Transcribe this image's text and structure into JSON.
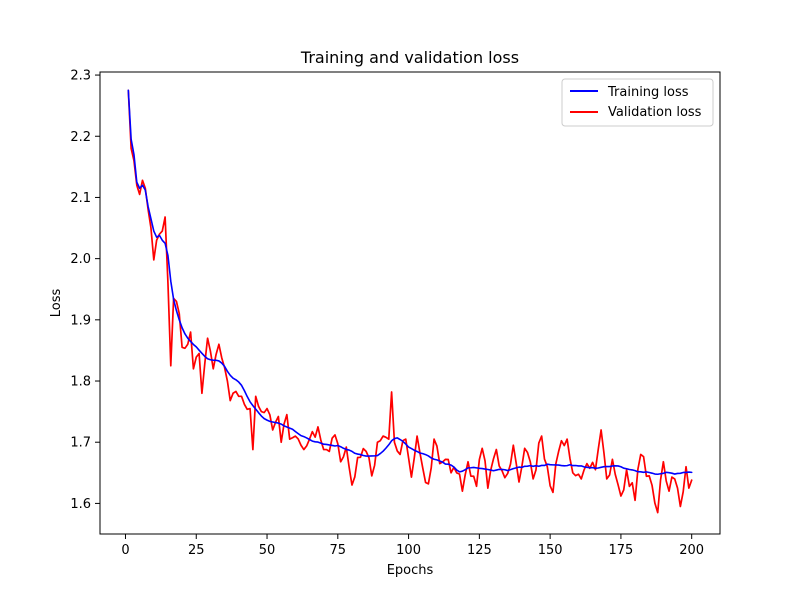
{
  "chart_data": {
    "type": "line",
    "title": "Training and validation loss",
    "xlabel": "Epochs",
    "ylabel": "Loss",
    "xlim": [
      -9,
      210
    ],
    "ylim": [
      1.55,
      2.305
    ],
    "xticks": [
      0,
      25,
      50,
      75,
      100,
      125,
      150,
      175,
      200
    ],
    "xtick_labels": [
      "0",
      "25",
      "50",
      "75",
      "100",
      "125",
      "150",
      "175",
      "200"
    ],
    "yticks": [
      1.6,
      1.7,
      1.8,
      1.9,
      2.0,
      2.1,
      2.2,
      2.3
    ],
    "ytick_labels": [
      "1.6",
      "1.7",
      "1.8",
      "1.9",
      "2.0",
      "2.1",
      "2.2",
      "2.3"
    ],
    "grid": false,
    "legend_position": "top-right",
    "series": [
      {
        "name": "Training loss",
        "color": "#0000ff",
        "anchors": [
          [
            1,
            2.275
          ],
          [
            2,
            2.195
          ],
          [
            3,
            2.17
          ],
          [
            4,
            2.125
          ],
          [
            5,
            2.115
          ],
          [
            6,
            2.12
          ],
          [
            7,
            2.112
          ],
          [
            8,
            2.085
          ],
          [
            9,
            2.065
          ],
          [
            10,
            2.045
          ],
          [
            11,
            2.035
          ],
          [
            12,
            2.038
          ],
          [
            13,
            2.03
          ],
          [
            14,
            2.025
          ],
          [
            15,
            2.005
          ],
          [
            16,
            1.955
          ],
          [
            17,
            1.93
          ],
          [
            18,
            1.915
          ],
          [
            19,
            1.9
          ],
          [
            20,
            1.885
          ],
          [
            22,
            1.87
          ],
          [
            24,
            1.86
          ],
          [
            26,
            1.852
          ],
          [
            28,
            1.84
          ],
          [
            30,
            1.832
          ],
          [
            32,
            1.835
          ],
          [
            34,
            1.832
          ],
          [
            36,
            1.815
          ],
          [
            38,
            1.805
          ],
          [
            40,
            1.8
          ],
          [
            42,
            1.785
          ],
          [
            44,
            1.765
          ],
          [
            46,
            1.755
          ],
          [
            48,
            1.742
          ],
          [
            50,
            1.735
          ],
          [
            55,
            1.73
          ],
          [
            60,
            1.718
          ],
          [
            65,
            1.705
          ],
          [
            70,
            1.695
          ],
          [
            75,
            1.695
          ],
          [
            80,
            1.685
          ],
          [
            85,
            1.675
          ],
          [
            90,
            1.68
          ],
          [
            93,
            1.695
          ],
          [
            95,
            1.71
          ],
          [
            98,
            1.702
          ],
          [
            100,
            1.692
          ],
          [
            105,
            1.682
          ],
          [
            110,
            1.67
          ],
          [
            115,
            1.665
          ],
          [
            118,
            1.65
          ],
          [
            122,
            1.66
          ],
          [
            125,
            1.658
          ],
          [
            130,
            1.655
          ],
          [
            135,
            1.655
          ],
          [
            140,
            1.66
          ],
          [
            145,
            1.66
          ],
          [
            150,
            1.665
          ],
          [
            155,
            1.66
          ],
          [
            160,
            1.662
          ],
          [
            165,
            1.658
          ],
          [
            170,
            1.66
          ],
          [
            175,
            1.66
          ],
          [
            180,
            1.652
          ],
          [
            185,
            1.652
          ],
          [
            190,
            1.65
          ],
          [
            195,
            1.648
          ],
          [
            200,
            1.65
          ]
        ],
        "noise": [
          0.0015,
          0.0025,
          0.003,
          0.0035
        ],
        "seed": 11,
        "smooth": true
      },
      {
        "name": "Validation loss",
        "color": "#ff0000",
        "anchors": [
          [
            1,
            2.275
          ],
          [
            2,
            2.18
          ],
          [
            3,
            2.16
          ],
          [
            4,
            2.12
          ],
          [
            5,
            2.105
          ],
          [
            6,
            2.128
          ],
          [
            7,
            2.115
          ],
          [
            8,
            2.08
          ],
          [
            9,
            2.05
          ],
          [
            10,
            1.998
          ],
          [
            11,
            2.03
          ],
          [
            12,
            2.04
          ],
          [
            13,
            2.045
          ],
          [
            14,
            2.068
          ],
          [
            15,
            1.96
          ],
          [
            16,
            1.825
          ],
          [
            17,
            1.935
          ],
          [
            18,
            1.93
          ],
          [
            19,
            1.91
          ],
          [
            20,
            1.855
          ],
          [
            22,
            1.86
          ],
          [
            23,
            1.88
          ],
          [
            24,
            1.82
          ],
          [
            26,
            1.845
          ],
          [
            27,
            1.78
          ],
          [
            29,
            1.87
          ],
          [
            31,
            1.82
          ],
          [
            33,
            1.86
          ],
          [
            35,
            1.822
          ],
          [
            36,
            1.8
          ],
          [
            37,
            1.768
          ],
          [
            38,
            1.78
          ],
          [
            40,
            1.775
          ],
          [
            41,
            1.775
          ],
          [
            42,
            1.762
          ],
          [
            44,
            1.755
          ],
          [
            45,
            1.688
          ],
          [
            46,
            1.775
          ],
          [
            48,
            1.75
          ],
          [
            50,
            1.755
          ],
          [
            52,
            1.72
          ],
          [
            54,
            1.742
          ],
          [
            55,
            1.7
          ],
          [
            57,
            1.745
          ],
          [
            58,
            1.705
          ],
          [
            60,
            1.71
          ],
          [
            62,
            1.695
          ],
          [
            65,
            1.705
          ],
          [
            68,
            1.725
          ],
          [
            70,
            1.688
          ],
          [
            72,
            1.685
          ],
          [
            74,
            1.712
          ],
          [
            76,
            1.668
          ],
          [
            78,
            1.692
          ],
          [
            80,
            1.63
          ],
          [
            82,
            1.675
          ],
          [
            85,
            1.685
          ],
          [
            87,
            1.645
          ],
          [
            89,
            1.7
          ],
          [
            91,
            1.71
          ],
          [
            93,
            1.705
          ],
          [
            94,
            1.782
          ],
          [
            95,
            1.7
          ],
          [
            97,
            1.68
          ],
          [
            99,
            1.705
          ],
          [
            101,
            1.643
          ],
          [
            103,
            1.71
          ],
          [
            105,
            1.658
          ],
          [
            107,
            1.632
          ],
          [
            109,
            1.705
          ],
          [
            111,
            1.665
          ],
          [
            113,
            1.672
          ],
          [
            115,
            1.65
          ],
          [
            117,
            1.65
          ],
          [
            119,
            1.62
          ],
          [
            121,
            1.668
          ],
          [
            124,
            1.628
          ],
          [
            126,
            1.69
          ],
          [
            128,
            1.625
          ],
          [
            131,
            1.688
          ],
          [
            134,
            1.642
          ],
          [
            137,
            1.695
          ],
          [
            139,
            1.635
          ],
          [
            141,
            1.69
          ],
          [
            144,
            1.64
          ],
          [
            147,
            1.71
          ],
          [
            149,
            1.66
          ],
          [
            151,
            1.618
          ],
          [
            153,
            1.685
          ],
          [
            156,
            1.705
          ],
          [
            158,
            1.65
          ],
          [
            161,
            1.64
          ],
          [
            163,
            1.665
          ],
          [
            166,
            1.655
          ],
          [
            168,
            1.72
          ],
          [
            170,
            1.64
          ],
          [
            172,
            1.672
          ],
          [
            175,
            1.612
          ],
          [
            177,
            1.655
          ],
          [
            180,
            1.605
          ],
          [
            182,
            1.68
          ],
          [
            185,
            1.645
          ],
          [
            188,
            1.585
          ],
          [
            190,
            1.668
          ],
          [
            192,
            1.62
          ],
          [
            194,
            1.64
          ],
          [
            196,
            1.595
          ],
          [
            198,
            1.66
          ],
          [
            199,
            1.625
          ],
          [
            200,
            1.638
          ]
        ],
        "noise": [
          0.004,
          0.008,
          0.011,
          0.014
        ],
        "seed": 29,
        "smooth": false
      }
    ]
  }
}
